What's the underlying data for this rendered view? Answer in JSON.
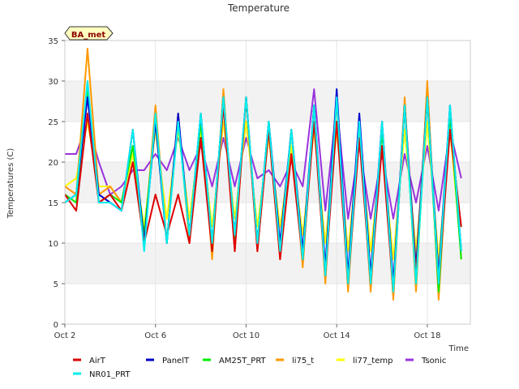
{
  "chart_data": {
    "type": "line",
    "title": "Temperature",
    "xlabel": "Time",
    "ylabel": "Temperatures (C)",
    "badge": "BA_met",
    "ylim": [
      0,
      35
    ],
    "xlim": [
      0,
      17.9
    ],
    "x_unit": "days since Oct 2",
    "yticks": [
      0,
      5,
      10,
      15,
      20,
      25,
      30,
      35
    ],
    "xticks": [
      {
        "label": "Oct 2",
        "value": 0
      },
      {
        "label": "Oct 6",
        "value": 4
      },
      {
        "label": "Oct 10",
        "value": 8
      },
      {
        "label": "Oct 14",
        "value": 12
      },
      {
        "label": "Oct 18",
        "value": 16
      }
    ],
    "grid": "horizontal alternating bands",
    "legend_position": "bottom",
    "series_x": [
      0.0,
      0.5,
      1.0,
      1.5,
      2.0,
      2.5,
      3.0,
      3.5,
      4.0,
      4.5,
      5.0,
      5.5,
      6.0,
      6.5,
      7.0,
      7.5,
      8.0,
      8.5,
      9.0,
      9.5,
      10.0,
      10.5,
      11.0,
      11.5,
      12.0,
      12.5,
      13.0,
      13.5,
      14.0,
      14.5,
      15.0,
      15.5,
      16.0,
      16.5,
      17.0,
      17.5
    ],
    "series": [
      {
        "name": "AirT",
        "color": "#dd0000",
        "values": [
          16,
          14,
          26,
          15,
          16,
          14,
          20,
          10,
          16,
          11,
          16,
          10,
          23,
          9,
          27,
          9,
          28,
          9,
          24,
          8,
          21,
          8,
          25,
          6,
          25,
          5,
          23,
          5,
          22,
          4,
          27,
          6,
          28,
          5,
          24,
          12
        ]
      },
      {
        "name": "PanelT",
        "color": "#0000cc",
        "values": [
          15,
          16,
          28,
          16,
          15,
          14,
          24,
          10,
          25,
          10,
          26,
          11,
          26,
          10,
          28,
          11,
          28,
          10,
          25,
          10,
          24,
          9,
          27,
          7,
          29,
          6,
          26,
          6,
          25,
          5,
          27,
          7,
          28,
          6,
          27,
          9
        ]
      },
      {
        "name": "AM25T_PRT",
        "color": "#00ee00",
        "values": [
          16,
          15,
          29,
          15,
          16,
          15,
          22,
          11,
          25,
          10,
          25,
          11,
          25,
          9,
          28,
          10,
          28,
          10,
          25,
          9,
          24,
          8,
          27,
          6,
          28,
          5,
          25,
          5,
          24,
          4,
          27,
          5,
          28,
          4,
          26,
          8
        ]
      },
      {
        "name": "li75_t",
        "color": "#ff9900",
        "values": [
          17,
          16,
          34,
          16,
          17,
          15,
          22,
          10,
          27,
          10,
          26,
          10,
          26,
          8,
          29,
          9,
          28,
          9,
          24,
          8,
          24,
          7,
          27,
          5,
          28,
          4,
          25,
          4,
          25,
          3,
          28,
          4,
          30,
          3,
          26,
          8
        ]
      },
      {
        "name": "li77_temp",
        "color": "#ffff00",
        "values": [
          17,
          18,
          25,
          17,
          17,
          15,
          21,
          12,
          24,
          13,
          24,
          13,
          24,
          12,
          25,
          13,
          25,
          12,
          23,
          12,
          22,
          11,
          24,
          10,
          24,
          9,
          23,
          9,
          22,
          8,
          24,
          9,
          25,
          8,
          24,
          9
        ]
      },
      {
        "name": "Tsonic",
        "color": "#9933dd",
        "values": [
          21,
          21,
          25,
          20,
          16,
          17,
          19,
          19,
          21,
          19,
          23,
          19,
          22,
          17,
          23,
          17,
          23,
          18,
          19,
          17,
          20,
          17,
          29,
          14,
          27,
          13,
          22,
          13,
          21,
          13,
          21,
          15,
          22,
          14,
          24,
          18
        ]
      },
      {
        "name": "NR01_PRT",
        "color": "#00eeee",
        "values": [
          15,
          16,
          30,
          15,
          15,
          14,
          24,
          9,
          26,
          10,
          25,
          11,
          26,
          10,
          28,
          11,
          28,
          10,
          25,
          9,
          24,
          8,
          27,
          6,
          28,
          5,
          25,
          5,
          25,
          4,
          27,
          5,
          28,
          5,
          27,
          9
        ]
      }
    ]
  }
}
